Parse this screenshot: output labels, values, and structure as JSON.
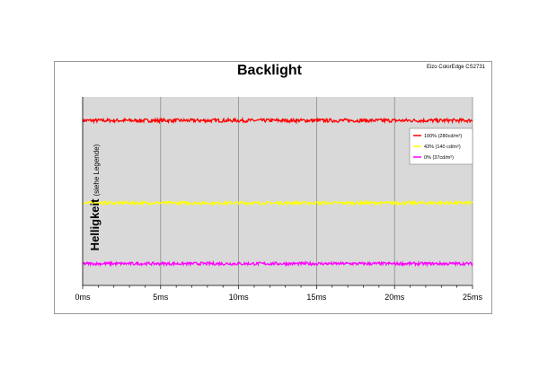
{
  "chart_data": {
    "type": "line",
    "title": "Backlight",
    "watermark": "Eizo ColorEdge CS2731",
    "xlabel": "",
    "ylabel": "Helligkeit",
    "ylabel_sub": "(siehe Legende)",
    "xlim": [
      0,
      25
    ],
    "x_ticks": [
      0,
      5,
      10,
      15,
      20,
      25
    ],
    "x_tick_labels": [
      "0ms",
      "5ms",
      "10ms",
      "15ms",
      "20ms",
      "25ms"
    ],
    "ylim": [
      0,
      320
    ],
    "y_tick_labels_visible": false,
    "grid": "vertical",
    "legend": "top-right",
    "background_color": "#d9d9d9",
    "series": [
      {
        "name": "100% (280cd/m²)",
        "color": "#ff0000",
        "level": 280,
        "noise": 3
      },
      {
        "name": "43% (140 cd/m²)",
        "color": "#ffff00",
        "level": 140,
        "noise": 2.5
      },
      {
        "name": "0% (37cd/m²)",
        "color": "#ff00ff",
        "level": 37,
        "noise": 2.5
      }
    ]
  }
}
